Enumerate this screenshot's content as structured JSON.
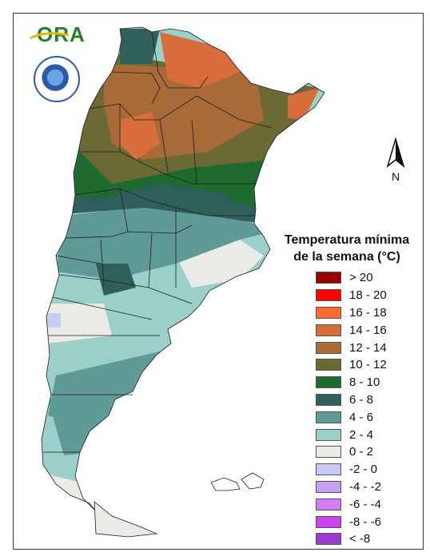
{
  "logo": {
    "name": "ORA",
    "text": "ORA"
  },
  "seal": {
    "name": "Servicio Meteorologico Nacional"
  },
  "north_arrow": {
    "label": "N"
  },
  "legend": {
    "title_line1": "Temperatura mínima",
    "title_line2": "de la semana (°C)",
    "classes": [
      {
        "label": "> 20",
        "color": "#9b0000"
      },
      {
        "label": "18 - 20",
        "color": "#ff0000"
      },
      {
        "label": "16 - 18",
        "color": "#ff6a33"
      },
      {
        "label": "14 - 16",
        "color": "#d66d3a"
      },
      {
        "label": "12 - 14",
        "color": "#a86a36"
      },
      {
        "label": "10 - 12",
        "color": "#6b6a34"
      },
      {
        "label": "8 - 10",
        "color": "#1f6b2f"
      },
      {
        "label": "6 - 8",
        "color": "#2f5f5a"
      },
      {
        "label": "4 - 6",
        "color": "#5f9a96"
      },
      {
        "label": "2 - 4",
        "color": "#9bcfca"
      },
      {
        "label": "0 - 2",
        "color": "#ebebe6"
      },
      {
        "label": "-2 - 0",
        "color": "#c8ccf4"
      },
      {
        "label": "-4 - -2",
        "color": "#c7a0f2"
      },
      {
        "label": "-6 - -4",
        "color": "#d27bf2"
      },
      {
        "label": "-8 - -6",
        "color": "#cc42ee"
      },
      {
        "label": "< -8",
        "color": "#9b3bd0"
      }
    ]
  }
}
